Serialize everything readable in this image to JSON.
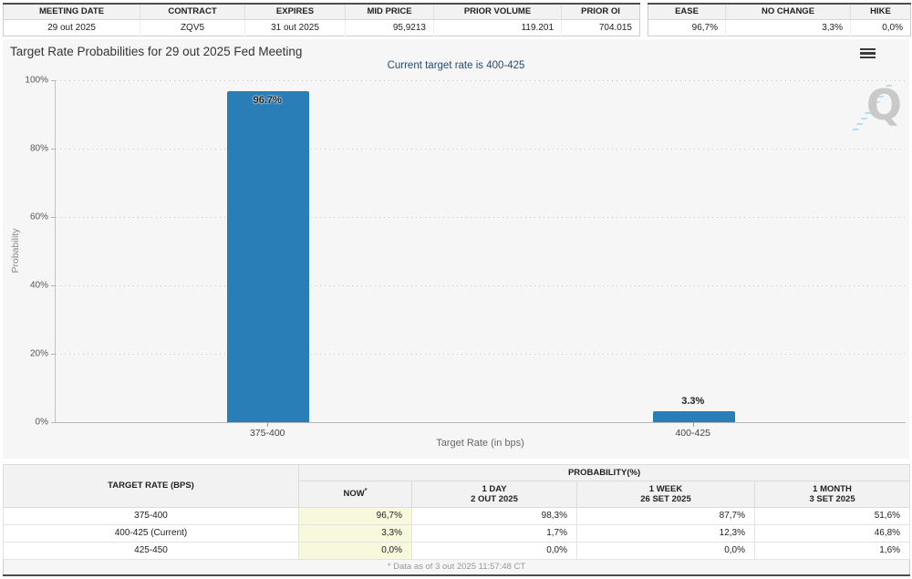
{
  "contract_table": {
    "headers": [
      "MEETING DATE",
      "CONTRACT",
      "EXPIRES",
      "MID PRICE",
      "PRIOR VOLUME",
      "PRIOR OI"
    ],
    "row": [
      "29 out 2025",
      "ZQV5",
      "31 out 2025",
      "95,9213",
      "119.201",
      "704.015"
    ]
  },
  "action_table": {
    "headers": [
      "EASE",
      "NO CHANGE",
      "HIKE"
    ],
    "row": [
      "96,7%",
      "3,3%",
      "0,0%"
    ]
  },
  "chart": {
    "title": "Target Rate Probabilities for 29 out 2025 Fed Meeting",
    "subtitle": "Current target rate is 400-425",
    "watermark_letter": "Q",
    "icons": {
      "chart_menu": "hamburger-menu-icon"
    }
  },
  "chart_data": {
    "type": "bar",
    "title": "Target Rate Probabilities for 29 out 2025 Fed Meeting",
    "subtitle": "Current target rate is 400-425",
    "xlabel": "Target Rate (in bps)",
    "ylabel": "Probability",
    "categories": [
      "375-400",
      "400-425"
    ],
    "values": [
      96.7,
      3.3
    ],
    "value_labels": [
      "96.7%",
      "3.3%"
    ],
    "ylim": [
      0,
      100
    ],
    "yticks": [
      "0%",
      "20%",
      "40%",
      "60%",
      "80%",
      "100%"
    ],
    "bar_color": "#2a7eb8",
    "grid": "dotted-horizontal",
    "legend": "none"
  },
  "probability_table": {
    "col1_header": "TARGET RATE (BPS)",
    "group_header": "PROBABILITY(%)",
    "columns": [
      {
        "label": "NOW",
        "sup": "*",
        "sub": ""
      },
      {
        "label": "1 DAY",
        "sub": "2 OUT 2025"
      },
      {
        "label": "1 WEEK",
        "sub": "26 SET 2025"
      },
      {
        "label": "1 MONTH",
        "sub": "3 SET 2025"
      }
    ],
    "rows": [
      {
        "rate": "375-400",
        "now": "96,7%",
        "day": "98,3%",
        "week": "87,7%",
        "month": "51,6%"
      },
      {
        "rate": "400-425 (Current)",
        "now": "3,3%",
        "day": "1,7%",
        "week": "12,3%",
        "month": "46,8%"
      },
      {
        "rate": "425-450",
        "now": "0,0%",
        "day": "0,0%",
        "week": "0,0%",
        "month": "1,6%"
      }
    ],
    "footnote": "* Data as of 3 out 2025 11:57:48 CT"
  }
}
